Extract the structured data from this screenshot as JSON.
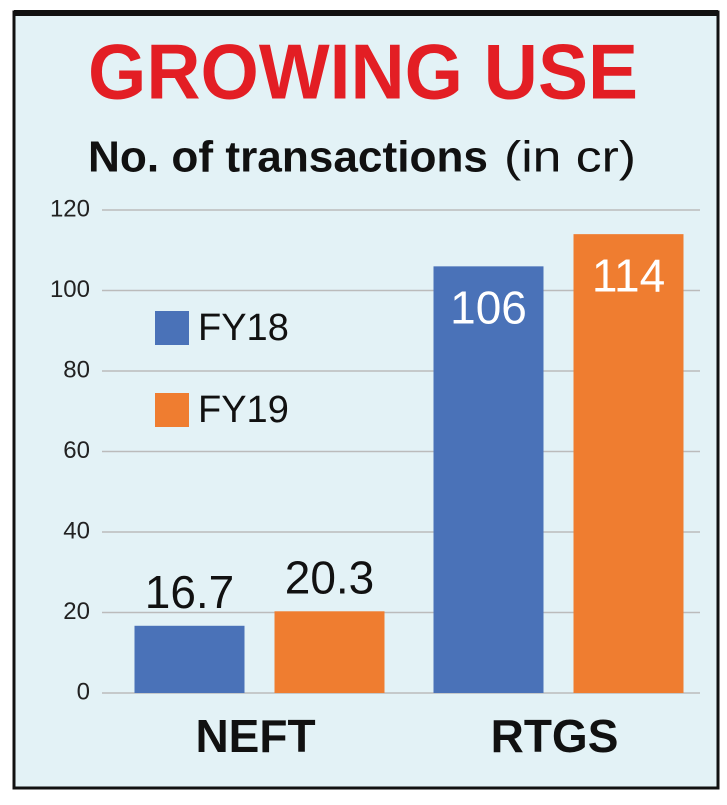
{
  "chart_data": {
    "type": "bar",
    "title": "GROWING USE",
    "subtitle": "No. of transactions",
    "unit_label": "(in cr)",
    "categories": [
      "NEFT",
      "RTGS"
    ],
    "series": [
      {
        "name": "FY18",
        "color": "#4a72b8",
        "values": [
          16.7,
          106
        ]
      },
      {
        "name": "FY19",
        "color": "#ef7d30",
        "values": [
          20.3,
          114
        ]
      }
    ],
    "ylim": [
      0,
      120
    ],
    "yticks": [
      0,
      20,
      40,
      60,
      80,
      100,
      120
    ],
    "grid": true,
    "legend": "upper-left"
  }
}
